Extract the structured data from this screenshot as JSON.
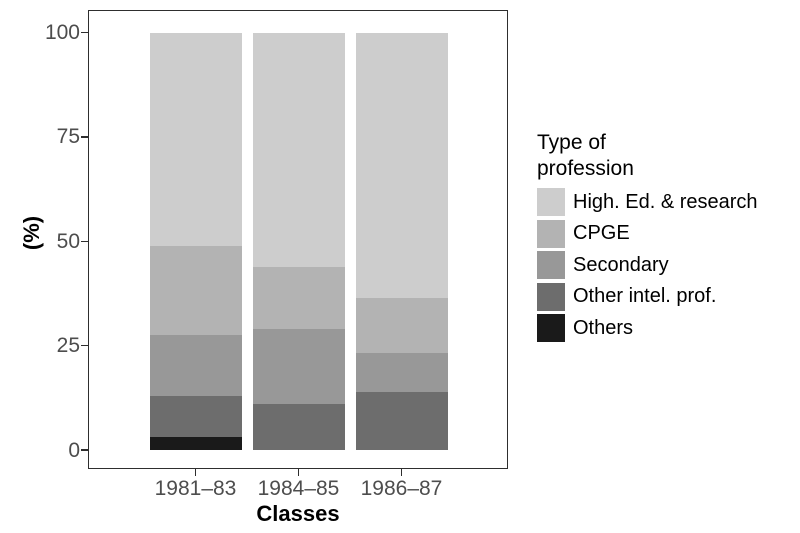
{
  "chart_data": {
    "type": "bar",
    "variant": "stacked_percent",
    "title": "",
    "xlabel": "Classes",
    "ylabel": "(%)",
    "categories": [
      "1981–83",
      "1984–85",
      "1986–87"
    ],
    "stack_order_bottom_to_top": [
      "Others",
      "Other intel. prof.",
      "Secondary",
      "CPGE",
      "High. Ed. & research"
    ],
    "series": [
      {
        "name": "High. Ed. & research",
        "color": "#cdcdcd",
        "values": [
          51.1,
          56.2,
          63.6
        ]
      },
      {
        "name": "CPGE",
        "color": "#b3b3b3",
        "values": [
          21.4,
          14.8,
          13.2
        ]
      },
      {
        "name": "Secondary",
        "color": "#989898",
        "values": [
          14.6,
          18.0,
          9.3
        ]
      },
      {
        "name": "Other intel. prof.",
        "color": "#6d6d6d",
        "values": [
          9.7,
          11.0,
          13.9
        ]
      },
      {
        "name": "Others",
        "color": "#1a1a1a",
        "values": [
          3.2,
          0,
          0
        ]
      }
    ],
    "yticks": [
      0,
      25,
      50,
      75,
      100
    ],
    "ytick_labels": [
      "0",
      "25",
      "50",
      "75",
      "100"
    ],
    "ylim": [
      0,
      100
    ],
    "grid": false,
    "legend_position": "right"
  },
  "axes": {
    "y_title": "(%)",
    "x_title": "Classes"
  },
  "legend": {
    "title_line1": "Type of",
    "title_line2": "profession",
    "items": [
      {
        "label": "High. Ed. & research",
        "color": "#cdcdcd"
      },
      {
        "label": "CPGE",
        "color": "#b3b3b3"
      },
      {
        "label": "Secondary",
        "color": "#989898"
      },
      {
        "label": "Other intel. prof.",
        "color": "#6d6d6d"
      },
      {
        "label": "Others",
        "color": "#1a1a1a"
      }
    ]
  },
  "colors": {
    "background": "#ffffff",
    "panel_border": "#2e2e2e",
    "tick_label": "#4d4d4d",
    "axis_title": "#000000"
  }
}
